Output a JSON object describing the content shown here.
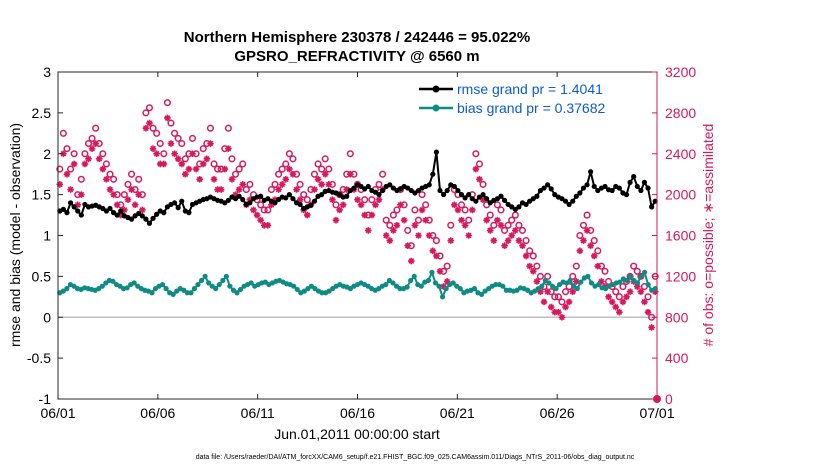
{
  "chart_data": {
    "type": "line",
    "title_line1": "Northern Hemisphere 230378 / 242446 = 95.022%",
    "title_line2": "GPSRO_REFRACTIVITY @ 6560 m",
    "xlabel": "Jun.01,2011 00:00:00 start",
    "ylabel_left": "rmse and bias (model - observation)",
    "ylabel_right": "# of obs: o=possible; ∗=assimilated",
    "footer": "data file: /Users/raeder/DAI/ATM_forcXX/CAM6_setup/f.e21.FHIST_BGC.f09_025.CAM6assim.011/Diags_NTrS_2011-06/obs_diag_output.nc",
    "xlim": [
      0,
      30
    ],
    "ylim_left": [
      -1,
      3
    ],
    "ylim_right": [
      0,
      3200
    ],
    "x_tick_values": [
      0,
      5,
      10,
      15,
      20,
      25,
      30
    ],
    "x_tick_labels": [
      "06/01",
      "06/06",
      "06/11",
      "06/16",
      "06/21",
      "06/26",
      "07/01"
    ],
    "y_left_ticks": [
      "-1",
      "-0.5",
      "0",
      "0.5",
      "1",
      "1.5",
      "2",
      "2.5",
      "3"
    ],
    "y_right_ticks": [
      "0",
      "400",
      "800",
      "1200",
      "1600",
      "2000",
      "2400",
      "2800",
      "3200"
    ],
    "grid": false,
    "legend_position": "top-right",
    "colors": {
      "rmse": "#000000",
      "bias": "#0f8b86",
      "counts": "#d6195d",
      "legend_text": "#0b5ad9",
      "zero_line": "#bfbfbf"
    },
    "series": [
      {
        "name": "rmse grand pr = 1.4041",
        "axis": "left",
        "values": [
          1.3,
          1.32,
          1.28,
          1.4,
          1.35,
          1.3,
          1.25,
          1.38,
          1.35,
          1.36,
          1.37,
          1.35,
          1.33,
          1.3,
          1.33,
          1.28,
          1.25,
          1.3,
          1.24,
          1.22,
          1.2,
          1.24,
          1.27,
          1.24,
          1.2,
          1.15,
          1.21,
          1.26,
          1.3,
          1.28,
          1.35,
          1.38,
          1.4,
          1.34,
          1.42,
          1.3,
          1.28,
          1.38,
          1.4,
          1.42,
          1.44,
          1.45,
          1.47,
          1.45,
          1.43,
          1.42,
          1.4,
          1.43,
          1.47,
          1.45,
          1.48,
          1.44,
          1.38,
          1.4,
          1.45,
          1.47,
          1.48,
          1.43,
          1.45,
          1.42,
          1.4,
          1.44,
          1.47,
          1.46,
          1.5,
          1.45,
          1.4,
          1.38,
          1.33,
          1.35,
          1.37,
          1.42,
          1.48,
          1.5,
          1.54,
          1.55,
          1.53,
          1.52,
          1.5,
          1.47,
          1.48,
          1.55,
          1.58,
          1.62,
          1.6,
          1.57,
          1.6,
          1.55,
          1.53,
          1.5,
          1.55,
          1.6,
          1.62,
          1.58,
          1.55,
          1.57,
          1.6,
          1.58,
          1.55,
          1.52,
          1.55,
          1.58,
          1.6,
          1.62,
          1.75,
          2.02,
          1.55,
          1.5,
          1.55,
          1.62,
          1.6,
          1.55,
          1.5,
          1.46,
          1.5,
          1.45,
          1.42,
          1.47,
          1.5,
          1.45,
          1.4,
          1.43,
          1.45,
          1.48,
          1.43,
          1.38,
          1.35,
          1.32,
          1.35,
          1.4,
          1.38,
          1.42,
          1.45,
          1.48,
          1.55,
          1.58,
          1.62,
          1.57,
          1.5,
          1.47,
          1.45,
          1.42,
          1.38,
          1.42,
          1.48,
          1.52,
          1.58,
          1.62,
          1.78,
          1.6,
          1.55,
          1.58,
          1.6,
          1.56,
          1.55,
          1.6,
          1.58,
          1.52,
          1.5,
          1.65,
          1.72,
          1.6,
          1.55,
          1.65,
          1.58,
          1.35,
          1.42
        ]
      },
      {
        "name": "bias grand pr = 0.37682",
        "axis": "left",
        "values": [
          0.3,
          0.32,
          0.35,
          0.4,
          0.38,
          0.35,
          0.34,
          0.36,
          0.35,
          0.34,
          0.33,
          0.35,
          0.38,
          0.42,
          0.45,
          0.44,
          0.4,
          0.38,
          0.35,
          0.36,
          0.4,
          0.42,
          0.38,
          0.35,
          0.33,
          0.32,
          0.3,
          0.35,
          0.38,
          0.4,
          0.35,
          0.3,
          0.28,
          0.32,
          0.35,
          0.33,
          0.3,
          0.3,
          0.35,
          0.4,
          0.45,
          0.5,
          0.42,
          0.38,
          0.35,
          0.4,
          0.45,
          0.5,
          0.38,
          0.33,
          0.3,
          0.34,
          0.38,
          0.4,
          0.42,
          0.38,
          0.4,
          0.42,
          0.43,
          0.4,
          0.42,
          0.44,
          0.45,
          0.43,
          0.41,
          0.4,
          0.38,
          0.34,
          0.3,
          0.32,
          0.35,
          0.38,
          0.35,
          0.32,
          0.3,
          0.3,
          0.32,
          0.35,
          0.38,
          0.4,
          0.38,
          0.37,
          0.35,
          0.38,
          0.4,
          0.42,
          0.4,
          0.38,
          0.35,
          0.33,
          0.35,
          0.38,
          0.4,
          0.45,
          0.42,
          0.38,
          0.35,
          0.35,
          0.37,
          0.45,
          0.5,
          0.4,
          0.38,
          0.43,
          0.45,
          0.55,
          0.42,
          0.38,
          0.25,
          0.35,
          0.4,
          0.42,
          0.38,
          0.35,
          0.3,
          0.32,
          0.33,
          0.35,
          0.3,
          0.28,
          0.32,
          0.35,
          0.38,
          0.4,
          0.4,
          0.38,
          0.33,
          0.33,
          0.32,
          0.33,
          0.36,
          0.35,
          0.33,
          0.3,
          0.32,
          0.35,
          0.38,
          0.45,
          0.42,
          0.38,
          0.35,
          0.4,
          0.43,
          0.42,
          0.45,
          0.38,
          0.35,
          0.43,
          0.48,
          0.5,
          0.42,
          0.38,
          0.4,
          0.36,
          0.35,
          0.38,
          0.4,
          0.42,
          0.43,
          0.47,
          0.45,
          0.5,
          0.45,
          0.42,
          0.5,
          0.55,
          0.4,
          0.33,
          0.35
        ]
      },
      {
        "name": "possible",
        "axis": "right",
        "marker": "o",
        "values": [
          2250,
          2600,
          2450,
          2250,
          2400,
          2000,
          2150,
          2400,
          2500,
          2550,
          2650,
          2500,
          2400,
          2300,
          2200,
          2150,
          2000,
          1900,
          2000,
          2100,
          2200,
          2050,
          2150,
          2000,
          2800,
          2850,
          2650,
          2600,
          2500,
          2400,
          2900,
          2700,
          2600,
          2550,
          2500,
          2350,
          2400,
          2550,
          2400,
          2300,
          2450,
          2500,
          2650,
          2300,
          2250,
          2250,
          2450,
          2650,
          2350,
          2200,
          2250,
          2300,
          2050,
          2100,
          2000,
          1950,
          1900,
          1850,
          1850,
          2050,
          2100,
          2200,
          2250,
          2300,
          2400,
          2350,
          2200,
          2100,
          2000,
          1950,
          2050,
          2200,
          2300,
          2250,
          2350,
          2250,
          2100,
          1900,
          2000,
          2050,
          2200,
          2400,
          2200,
          2100,
          2050,
          1950,
          1800,
          1950,
          2050,
          2100,
          2200,
          1750,
          1700,
          1800,
          1850,
          2050,
          1900,
          1650,
          1500,
          1850,
          1750,
          2000,
          1900,
          1750,
          1600,
          1550,
          1400,
          1250,
          1300,
          1700,
          2050,
          2000,
          1900,
          1850,
          1750,
          2000,
          2400,
          2300,
          2100,
          1900,
          1800,
          1700,
          1900,
          1850,
          1650,
          1700,
          1750,
          1800,
          1700,
          1650,
          1550,
          1450,
          1400,
          1300,
          1200,
          1100,
          1200,
          1050,
          1000,
          1000,
          950,
          1050,
          1100,
          1200,
          1300,
          1600,
          1700,
          1800,
          1650,
          1550,
          1450,
          1300,
          1250,
          1150,
          1100,
          1050,
          1000,
          1100,
          1150,
          1200,
          1300,
          1250,
          1200,
          1100,
          1000,
          800,
          1200
        ]
      },
      {
        "name": "assimilated",
        "axis": "right",
        "marker": "*",
        "values": [
          2100,
          2400,
          2200,
          2050,
          2300,
          1900,
          2000,
          2300,
          2350,
          2450,
          2500,
          2350,
          2250,
          2150,
          2050,
          2000,
          1900,
          1800,
          1850,
          1950,
          2050,
          1900,
          2000,
          1850,
          2650,
          2700,
          2450,
          2400,
          2300,
          2300,
          2750,
          2500,
          2400,
          2350,
          2300,
          2200,
          2250,
          2400,
          2250,
          2150,
          2300,
          2350,
          2500,
          2150,
          2050,
          2050,
          2250,
          2450,
          2150,
          2000,
          2050,
          2100,
          1900,
          1950,
          1850,
          1800,
          1750,
          1700,
          1700,
          1900,
          1950,
          2050,
          2100,
          2150,
          2250,
          2200,
          2050,
          1950,
          1850,
          1800,
          1900,
          2050,
          2150,
          2100,
          2200,
          2100,
          1950,
          1750,
          1850,
          1900,
          2050,
          2200,
          2050,
          1950,
          1900,
          1800,
          1650,
          1800,
          1900,
          1950,
          2050,
          1600,
          1550,
          1650,
          1700,
          1900,
          1750,
          1500,
          1350,
          1700,
          1600,
          1850,
          1750,
          1600,
          1450,
          1400,
          1250,
          1100,
          1150,
          1550,
          1900,
          1850,
          1750,
          1700,
          1600,
          1850,
          2250,
          2150,
          1950,
          1750,
          1650,
          1550,
          1750,
          1700,
          1500,
          1550,
          1600,
          1650,
          1550,
          1500,
          1400,
          1300,
          1250,
          1150,
          1050,
          950,
          1050,
          900,
          850,
          850,
          800,
          900,
          950,
          1050,
          1150,
          1450,
          1550,
          1650,
          1500,
          1400,
          1300,
          1150,
          1100,
          1000,
          950,
          900,
          850,
          950,
          1000,
          1050,
          1150,
          1100,
          1050,
          950,
          850,
          700,
          1050
        ]
      }
    ]
  }
}
